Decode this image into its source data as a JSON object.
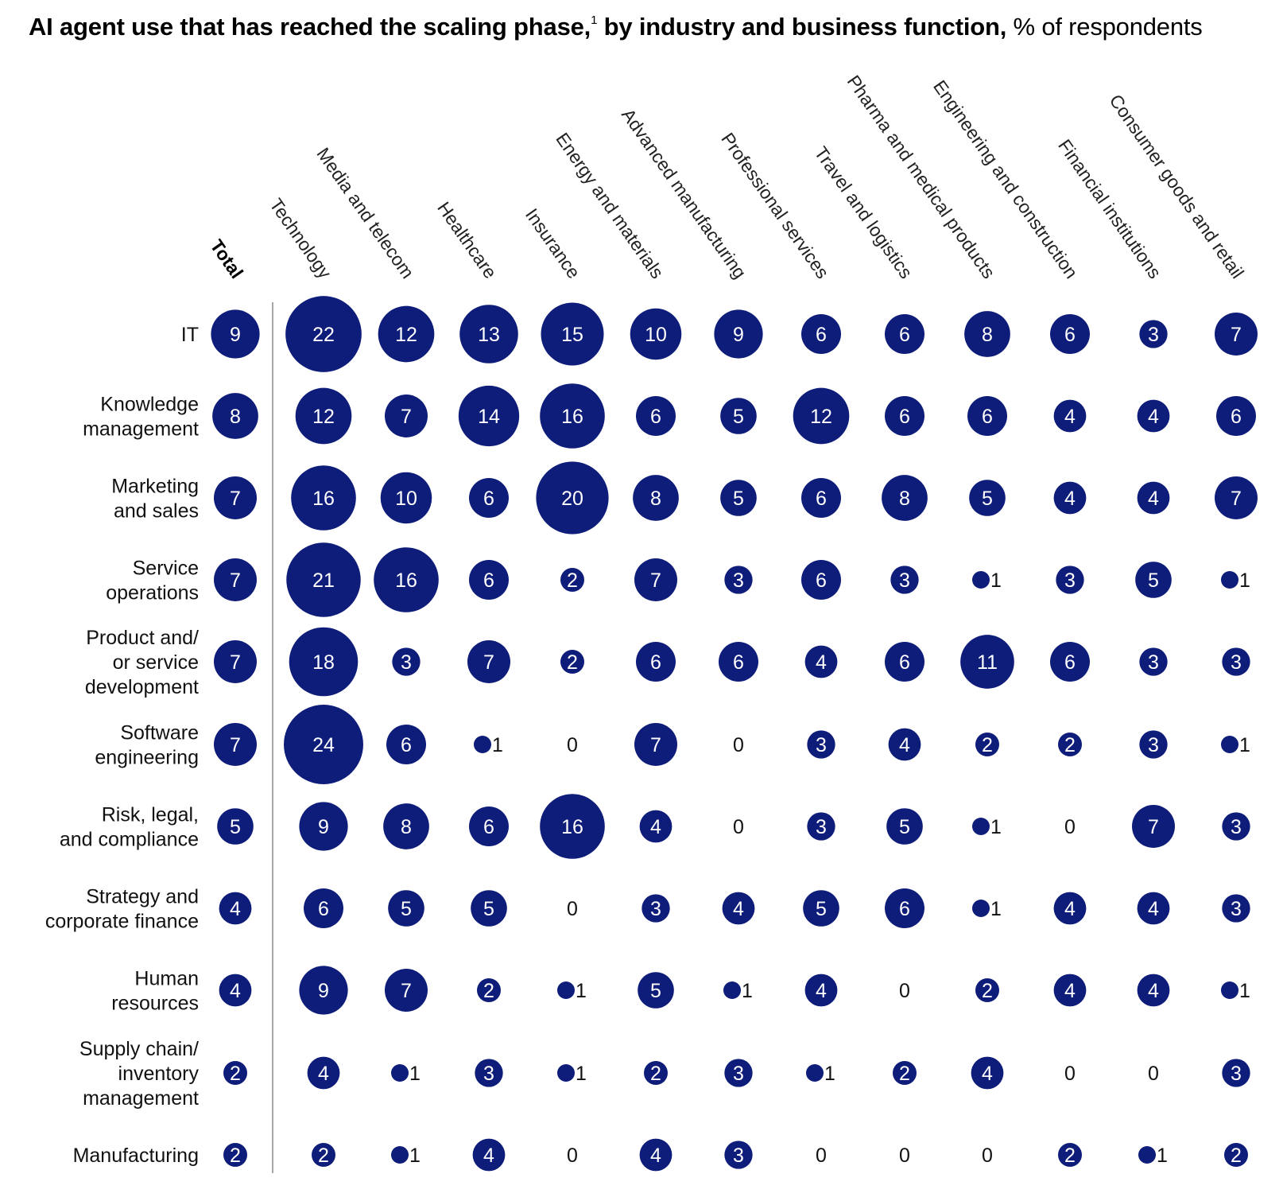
{
  "title": {
    "bold": "AI agent use that has reached the scaling phase,",
    "footnote": "1",
    "bold2": " by industry and business function,",
    "normal": " % of respondents"
  },
  "colors": {
    "bubble": "#0e1c7a",
    "text_on_bubble": "#ffffff",
    "text_plain": "#111111",
    "axis_line": "#8a8a8a"
  },
  "chart_data": {
    "type": "bubble-matrix",
    "unit": "% of respondents",
    "columns": [
      "Total",
      "Technology",
      "Media and telecom",
      "Healthcare",
      "Insurance",
      "Energy and materials",
      "Advanced manufacturing",
      "Professional services",
      "Travel and logistics",
      "Pharma and medical products",
      "Engineering and construction",
      "Financial institutions",
      "Consumer goods and retail"
    ],
    "rows": [
      {
        "label": [
          "IT"
        ],
        "values": [
          9,
          22,
          12,
          13,
          15,
          10,
          9,
          6,
          6,
          8,
          6,
          3,
          7
        ]
      },
      {
        "label": [
          "Knowledge",
          "management"
        ],
        "values": [
          8,
          12,
          7,
          14,
          16,
          6,
          5,
          12,
          6,
          6,
          4,
          4,
          6
        ]
      },
      {
        "label": [
          "Marketing",
          "and sales"
        ],
        "values": [
          7,
          16,
          10,
          6,
          20,
          8,
          5,
          6,
          8,
          5,
          4,
          4,
          7
        ]
      },
      {
        "label": [
          "Service",
          "operations"
        ],
        "values": [
          7,
          21,
          16,
          6,
          2,
          7,
          3,
          6,
          3,
          1,
          3,
          5,
          1
        ]
      },
      {
        "label": [
          "Product and/",
          "or service",
          "development"
        ],
        "values": [
          7,
          18,
          3,
          7,
          2,
          6,
          6,
          4,
          6,
          11,
          6,
          3,
          3
        ]
      },
      {
        "label": [
          "Software",
          "engineering"
        ],
        "values": [
          7,
          24,
          6,
          1,
          0,
          7,
          0,
          3,
          4,
          2,
          2,
          3,
          1
        ]
      },
      {
        "label": [
          "Risk, legal,",
          "and compliance"
        ],
        "values": [
          5,
          9,
          8,
          6,
          16,
          4,
          0,
          3,
          5,
          1,
          0,
          7,
          3
        ]
      },
      {
        "label": [
          "Strategy and",
          "corporate finance"
        ],
        "values": [
          4,
          6,
          5,
          5,
          0,
          3,
          4,
          5,
          6,
          1,
          4,
          4,
          3
        ]
      },
      {
        "label": [
          "Human",
          "resources"
        ],
        "values": [
          4,
          9,
          7,
          2,
          1,
          5,
          1,
          4,
          0,
          2,
          4,
          4,
          1
        ]
      },
      {
        "label": [
          "Supply chain/",
          "inventory",
          "management"
        ],
        "values": [
          2,
          4,
          1,
          3,
          1,
          2,
          3,
          1,
          2,
          4,
          0,
          0,
          3
        ]
      },
      {
        "label": [
          "Manufacturing"
        ],
        "values": [
          2,
          2,
          1,
          4,
          0,
          4,
          3,
          0,
          0,
          0,
          2,
          1,
          2
        ]
      }
    ]
  }
}
